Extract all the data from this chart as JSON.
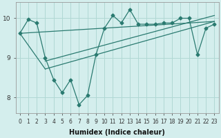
{
  "title": "",
  "xlabel": "Humidex (Indice chaleur)",
  "ylabel": "",
  "bg_color": "#d4eeed",
  "grid_color": "#b0d8d4",
  "line_color": "#2a7a70",
  "xlim": [
    -0.5,
    23.5
  ],
  "ylim": [
    7.6,
    10.4
  ],
  "yticks": [
    8,
    9,
    10
  ],
  "xticks": [
    0,
    1,
    2,
    3,
    4,
    5,
    6,
    7,
    8,
    9,
    10,
    11,
    12,
    13,
    14,
    15,
    16,
    17,
    18,
    19,
    20,
    21,
    22,
    23
  ],
  "main_line_x": [
    0,
    1,
    2,
    3,
    4,
    5,
    6,
    7,
    8,
    9,
    10,
    11,
    12,
    13,
    14,
    15,
    16,
    17,
    18,
    19,
    20,
    21,
    22,
    23
  ],
  "main_line_y": [
    9.62,
    9.97,
    9.88,
    9.0,
    8.45,
    8.12,
    8.45,
    7.82,
    8.05,
    9.08,
    9.75,
    10.07,
    9.88,
    10.22,
    9.85,
    9.85,
    9.85,
    9.88,
    9.88,
    10.0,
    10.0,
    9.08,
    9.75,
    9.85
  ],
  "wedge_lines": [
    {
      "x": [
        0,
        3
      ],
      "y": [
        9.62,
        8.72
      ]
    },
    {
      "x": [
        3,
        23
      ],
      "y": [
        8.72,
        9.92
      ]
    },
    {
      "x": [
        0,
        23
      ],
      "y": [
        9.62,
        9.92
      ]
    },
    {
      "x": [
        3,
        23
      ],
      "y": [
        8.92,
        10.07
      ]
    }
  ],
  "marker_size": 2.5,
  "line_width": 0.9,
  "tick_fontsize": 5.5,
  "label_fontsize": 7
}
